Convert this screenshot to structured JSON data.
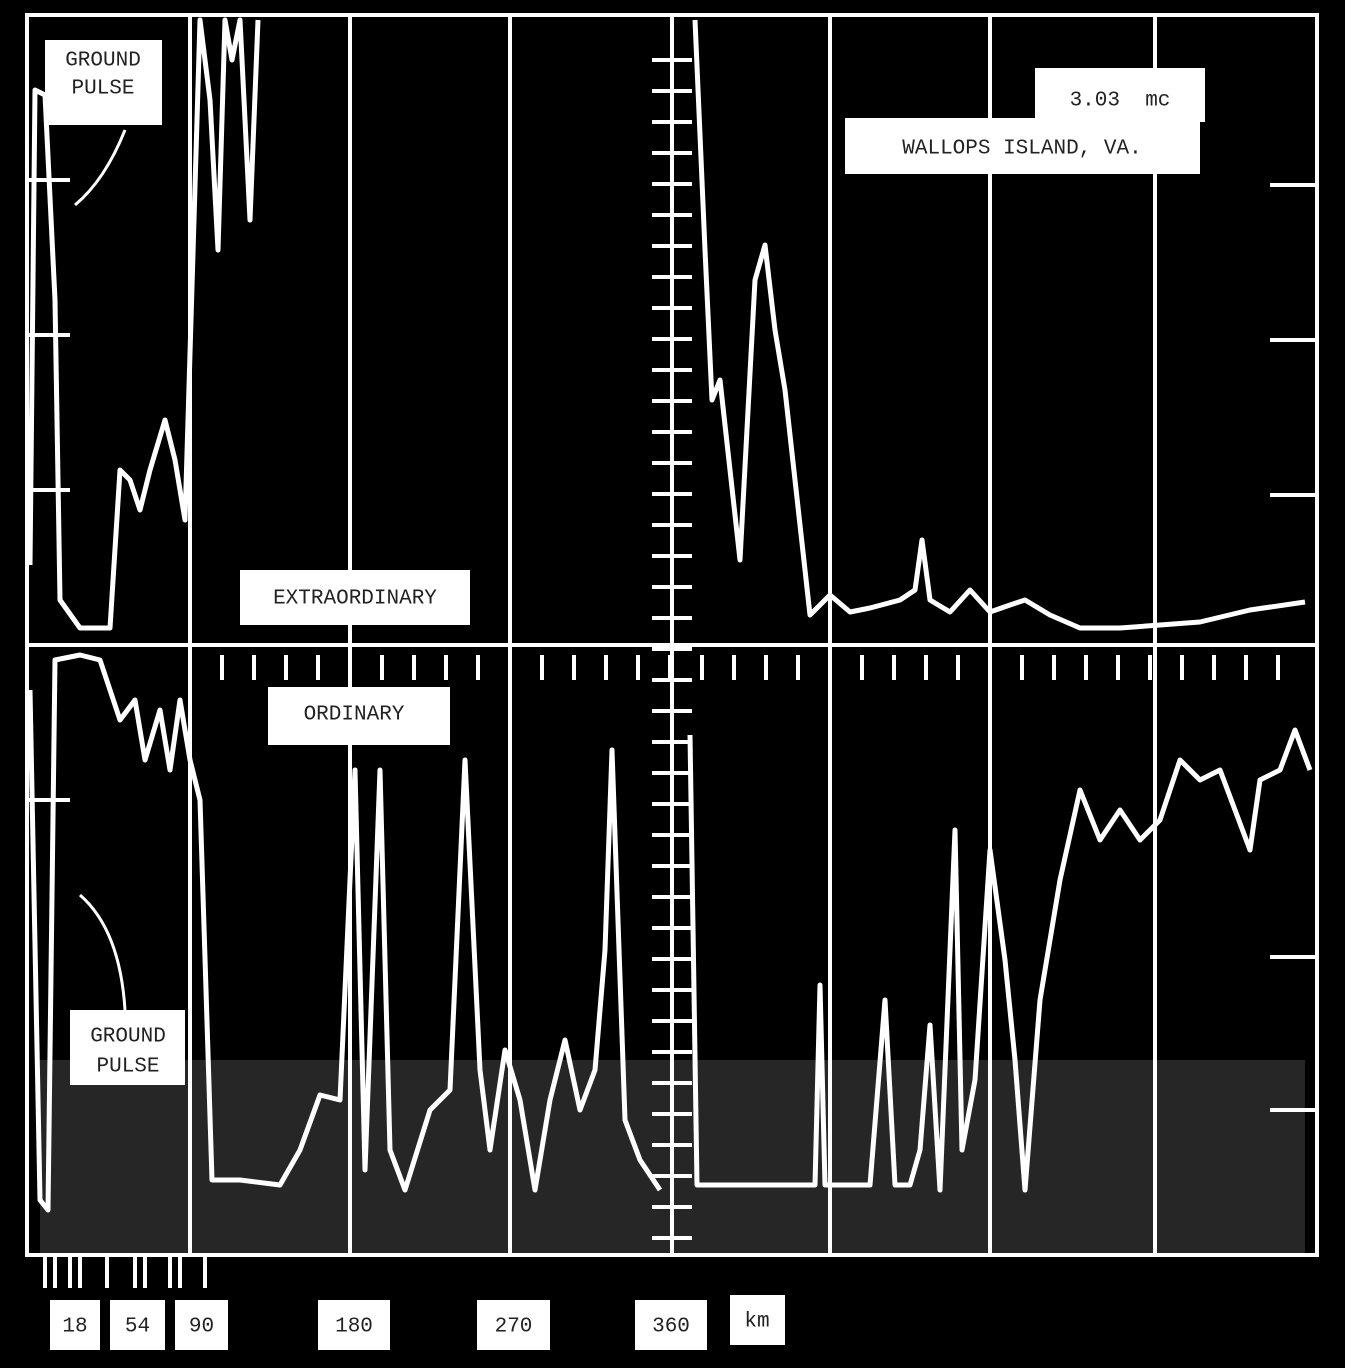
{
  "annotations": {
    "ground_pulse_upper": [
      "GROUND",
      "PULSE"
    ],
    "frequency": "3.03  mc",
    "station": "WALLOPS ISLAND, VA.",
    "extraordinary": "EXTRAORDINARY",
    "ordinary": "ORDINARY",
    "ground_pulse_lower": [
      "GROUND",
      "PULSE"
    ]
  },
  "range_axis": {
    "labels": [
      "18",
      "54",
      "90",
      "180",
      "270",
      "360"
    ],
    "unit": "km"
  }
}
